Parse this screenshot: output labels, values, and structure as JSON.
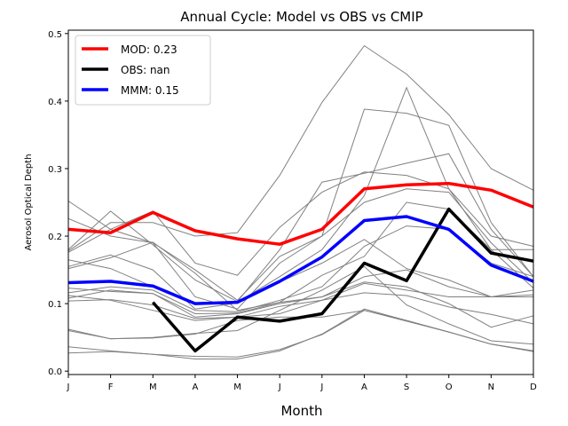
{
  "chart_data": {
    "type": "line",
    "title": "Annual Cycle: Model vs OBS vs CMIP",
    "xlabel": "Month",
    "ylabel": "Aerosol Optical Depth",
    "categories": [
      "J",
      "F",
      "M",
      "A",
      "M",
      "J",
      "J",
      "A",
      "S",
      "O",
      "N",
      "D"
    ],
    "ylim": [
      -0.005,
      0.505
    ],
    "yticks": [
      "0.0",
      "0.1",
      "0.2",
      "0.3",
      "0.4",
      "0.5"
    ],
    "ytick_values": [
      0.0,
      0.1,
      0.2,
      0.3,
      0.4,
      0.5
    ],
    "grid": false,
    "legend_position": "top-left",
    "series": [
      {
        "name": "MOD",
        "label": "MOD: 0.23",
        "color": "#ff0000",
        "values": [
          0.21,
          0.205,
          0.235,
          0.208,
          0.196,
          0.188,
          0.21,
          0.27,
          0.276,
          0.278,
          0.268,
          0.243
        ]
      },
      {
        "name": "OBS",
        "label": "OBS: nan",
        "color": "#000000",
        "values": [
          null,
          null,
          0.102,
          0.03,
          0.08,
          0.074,
          0.085,
          0.16,
          0.134,
          0.24,
          0.175,
          0.163
        ]
      },
      {
        "name": "MMM",
        "label": "MMM: 0.15",
        "color": "#0000ff",
        "values": [
          0.131,
          0.133,
          0.126,
          0.1,
          0.102,
          0.133,
          0.169,
          0.223,
          0.229,
          0.21,
          0.157,
          0.133
        ]
      }
    ],
    "cmip_color": "#808080",
    "cmip_models": [
      [
        0.252,
        0.21,
        0.237,
        0.16,
        0.142,
        0.213,
        0.265,
        0.295,
        0.29,
        0.27,
        0.2,
        0.185
      ],
      [
        0.226,
        0.2,
        0.19,
        0.15,
        0.105,
        0.17,
        0.2,
        0.388,
        0.382,
        0.364,
        0.22,
        0.14
      ],
      [
        0.18,
        0.237,
        0.187,
        0.135,
        0.103,
        0.18,
        0.28,
        0.293,
        0.308,
        0.322,
        0.21,
        0.14
      ],
      [
        0.178,
        0.22,
        0.22,
        0.2,
        0.205,
        0.29,
        0.398,
        0.482,
        0.44,
        0.38,
        0.3,
        0.268
      ],
      [
        0.176,
        0.21,
        0.19,
        0.11,
        0.092,
        0.16,
        0.2,
        0.25,
        0.27,
        0.265,
        0.19,
        0.131
      ],
      [
        0.165,
        0.152,
        0.125,
        0.1,
        0.102,
        0.14,
        0.18,
        0.26,
        0.42,
        0.27,
        0.18,
        0.123
      ],
      [
        0.155,
        0.172,
        0.15,
        0.092,
        0.101,
        0.132,
        0.16,
        0.195,
        0.152,
        0.135,
        0.11,
        0.12
      ],
      [
        0.152,
        0.168,
        0.191,
        0.145,
        0.09,
        0.102,
        0.142,
        0.17,
        0.25,
        0.24,
        0.18,
        0.18
      ],
      [
        0.123,
        0.118,
        0.115,
        0.08,
        0.085,
        0.1,
        0.11,
        0.14,
        0.15,
        0.125,
        0.11,
        0.113
      ],
      [
        0.116,
        0.125,
        0.12,
        0.09,
        0.088,
        0.105,
        0.125,
        0.185,
        0.215,
        0.21,
        0.16,
        0.14
      ],
      [
        0.112,
        0.105,
        0.09,
        0.075,
        0.08,
        0.085,
        0.105,
        0.13,
        0.12,
        0.11,
        0.11,
        0.11
      ],
      [
        0.108,
        0.12,
        0.115,
        0.085,
        0.086,
        0.102,
        0.11,
        0.132,
        0.125,
        0.1,
        0.065,
        0.082
      ],
      [
        0.104,
        0.106,
        0.098,
        0.078,
        0.08,
        0.096,
        0.105,
        0.116,
        0.112,
        0.095,
        0.084,
        0.07
      ],
      [
        0.06,
        0.048,
        0.05,
        0.056,
        0.06,
        0.09,
        0.12,
        0.155,
        0.098,
        0.07,
        0.045,
        0.04
      ],
      [
        0.062,
        0.048,
        0.049,
        0.055,
        0.075,
        0.08,
        0.08,
        0.09,
        0.075,
        0.058,
        0.04,
        0.03
      ],
      [
        0.036,
        0.03,
        0.025,
        0.018,
        0.018,
        0.03,
        0.055,
        0.092,
        0.075,
        0.058,
        0.04,
        0.03
      ],
      [
        0.027,
        0.029,
        0.025,
        0.022,
        0.021,
        0.032,
        0.054,
        0.09,
        0.074,
        0.058,
        0.04,
        0.029
      ]
    ]
  }
}
